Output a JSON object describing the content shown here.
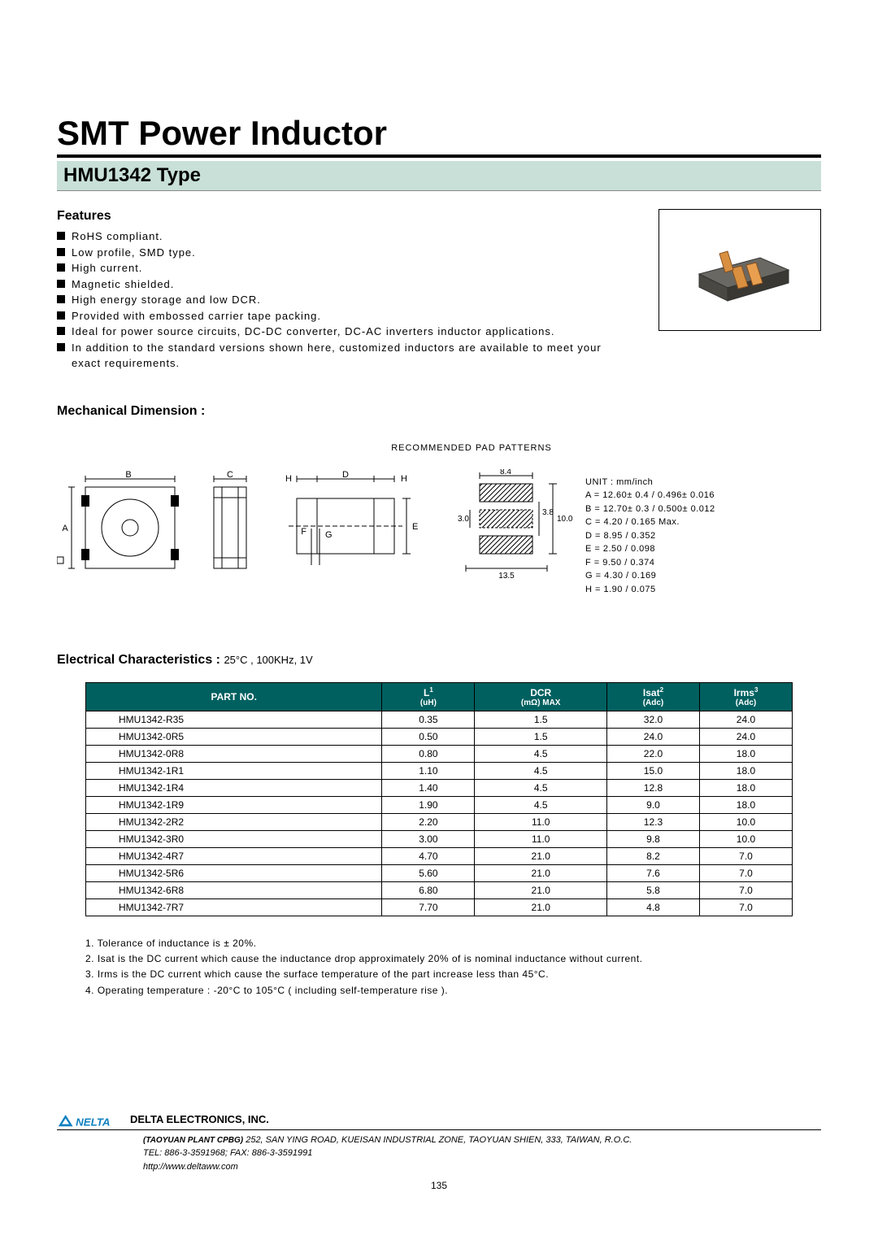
{
  "title": "SMT Power Inductor",
  "subtitle": "HMU1342  Type",
  "features_heading": "Features",
  "features": [
    "RoHS   compliant.",
    "Low  profile,  SMD  type.",
    "High   current.",
    "Magnetic   shielded.",
    "High  energy  storage  and  low  DCR.",
    "Provided  with  embossed  carrier  tape  packing.",
    "Ideal  for  power  source  circuits,  DC-DC  converter,  DC-AC  inverters inductor   applications.",
    "In  addition  to  the  standard  versions  shown  here,  customized  inductors are  available  to  meet  your  exact  requirements."
  ],
  "mech_heading": "Mechanical Dimension :",
  "pad_label": "RECOMMENDED  PAD  PATTERNS",
  "dim_labels": {
    "A": "A",
    "B": "B",
    "C": "C",
    "D": "D",
    "E": "E",
    "F": "F",
    "G": "G",
    "H": "H"
  },
  "pad_vals": {
    "w": "8.4",
    "h": "3.0",
    "gap": "3.8",
    "total_h": "10.0",
    "total_w": "13.5"
  },
  "unit_label": "UNIT : mm/inch",
  "dims": [
    "A = 12.60± 0.4 / 0.496± 0.016",
    "B = 12.70± 0.3 / 0.500± 0.012",
    "C = 4.20 / 0.165 Max.",
    "D = 8.95 / 0.352",
    "E = 2.50 / 0.098",
    "F = 9.50 / 0.374",
    "G = 4.30 / 0.169",
    "H = 1.90 / 0.075"
  ],
  "elec_heading": "Electrical Characteristics :  ",
  "elec_cond": "25°C , 100KHz, 1V",
  "columns": [
    {
      "h": "PART NO.",
      "s": ""
    },
    {
      "h": "L",
      "sup": "1",
      "s": "(uH)"
    },
    {
      "h": "DCR",
      "s": "(mΩ) MAX"
    },
    {
      "h": "Isat",
      "sup": "2",
      "s": "(Adc)"
    },
    {
      "h": "Irms",
      "sup": "3",
      "s": "(Adc)"
    }
  ],
  "rows": [
    [
      "HMU1342-R35",
      "0.35",
      "1.5",
      "32.0",
      "24.0"
    ],
    [
      "HMU1342-0R5",
      "0.50",
      "1.5",
      "24.0",
      "24.0"
    ],
    [
      "HMU1342-0R8",
      "0.80",
      "4.5",
      "22.0",
      "18.0"
    ],
    [
      "HMU1342-1R1",
      "1.10",
      "4.5",
      "15.0",
      "18.0"
    ],
    [
      "HMU1342-1R4",
      "1.40",
      "4.5",
      "12.8",
      "18.0"
    ],
    [
      "HMU1342-1R9",
      "1.90",
      "4.5",
      "9.0",
      "18.0"
    ],
    [
      "HMU1342-2R2",
      "2.20",
      "11.0",
      "12.3",
      "10.0"
    ],
    [
      "HMU1342-3R0",
      "3.00",
      "11.0",
      "9.8",
      "10.0"
    ],
    [
      "HMU1342-4R7",
      "4.70",
      "21.0",
      "8.2",
      "7.0"
    ],
    [
      "HMU1342-5R6",
      "5.60",
      "21.0",
      "7.6",
      "7.0"
    ],
    [
      "HMU1342-6R8",
      "6.80",
      "21.0",
      "5.8",
      "7.0"
    ],
    [
      "HMU1342-7R7",
      "7.70",
      "21.0",
      "4.8",
      "7.0"
    ]
  ],
  "notes": [
    "1.  Tolerance  of  inductance  is ± 20%.",
    "2.  Isat  is the  DC  current which  cause  the  inductance  drop  approximately  20%  of  is  nominal  inductance  without  current.",
    "3.  Irms  is  the  DC  current  which  cause  the  surface  temperature  of  the  part  increase  less  than  45°C.",
    "4.  Operating temperature  :   -20°C  to  105°C  ( including  self-temperature  rise )."
  ],
  "footer": {
    "company": "DELTA ELECTRONICS, INC.",
    "plant": "(TAOYUAN PLANT CPBG)",
    "address": "252, SAN YING ROAD, KUEISAN INDUSTRIAL ZONE, TAOYUAN SHIEN, 333, TAIWAN, R.O.C.",
    "contact": "TEL: 886-3-3591968; FAX: 886-3-3591991",
    "url": "http://www.deltaww.com",
    "logo_text": "NELTA"
  },
  "page": "135",
  "colors": {
    "header_bg": "#c8e0d8",
    "table_header": "#006060",
    "inductor_body": "#5a5852",
    "inductor_coil": "#d89040"
  }
}
